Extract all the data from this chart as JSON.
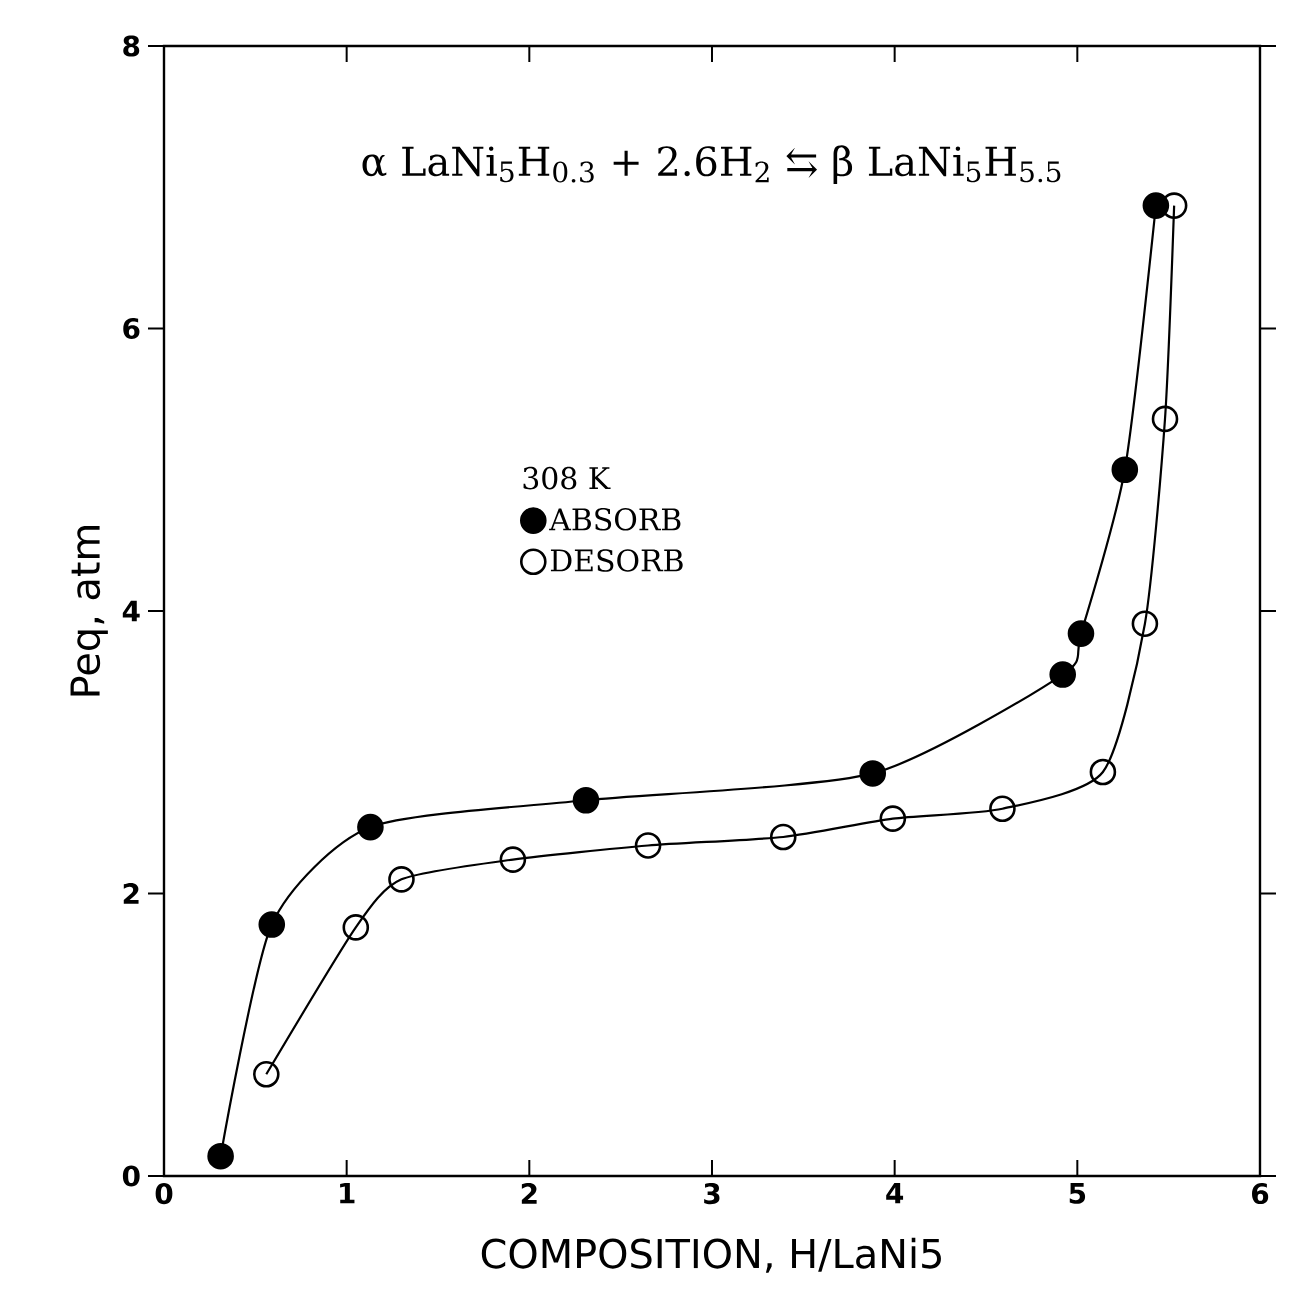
{
  "chart_data": {
    "type": "line",
    "xlabel": "COMPOSITION, H/LaNi5",
    "ylabel": "Peq, atm",
    "legend_title": "308 K",
    "annotations": [
      "α LaNi$_{5}$H$_{0.3}$ + 2.6H$_{2}$ ⇆ β LaNi$_{5}$H$_{5.5}$"
    ],
    "xlim": [
      0,
      6
    ],
    "ylim": [
      0,
      8
    ],
    "xticks": [
      0,
      1,
      2,
      3,
      4,
      5,
      6
    ],
    "yticks": [
      0,
      2,
      4,
      6,
      8
    ],
    "grid": false,
    "legend": "center",
    "line_style": "solid",
    "series": [
      {
        "name": "ABSORB",
        "color": "#000000",
        "marker": "circle",
        "x": [
          0.31,
          0.59,
          1.13,
          2.31,
          3.88,
          4.92,
          5.02,
          5.26,
          5.43
        ],
        "values": [
          0.14,
          1.78,
          2.47,
          2.66,
          2.85,
          3.55,
          3.84,
          5.0,
          6.87
        ]
      },
      {
        "name": "DESORB",
        "color": "#000000",
        "marker": "open circle",
        "x": [
          0.56,
          1.05,
          1.3,
          1.91,
          2.65,
          3.39,
          3.99,
          4.59,
          5.14,
          5.37,
          5.48,
          5.53
        ],
        "values": [
          0.72,
          1.76,
          2.1,
          2.24,
          2.34,
          2.4,
          2.53,
          2.6,
          2.86,
          3.91,
          5.36,
          6.87
        ]
      }
    ]
  }
}
